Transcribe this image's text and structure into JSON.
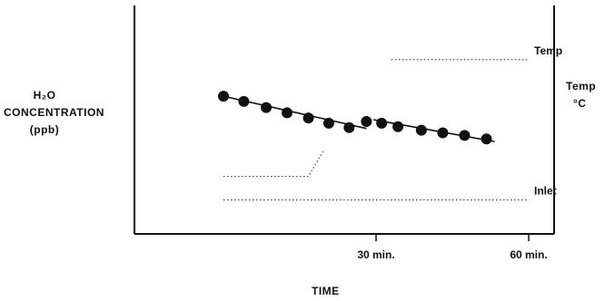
{
  "chart_data": {
    "type": "scatter",
    "title": "",
    "xlabel": "TIME",
    "ylabel_lines": [
      "H₂O",
      "CONCENTRATION",
      "(ppb)"
    ],
    "right_axis_label_lines": [
      "Temp",
      "°C"
    ],
    "x_unit": "min.",
    "xlim": [
      -17.5,
      65
    ],
    "x_ticks": [
      {
        "value": 30,
        "label": "30 min."
      },
      {
        "value": 60,
        "label": "60 min."
      }
    ],
    "grid": false,
    "y_axis_numeric_ticks": false,
    "series": [
      {
        "name": "",
        "kind": "points",
        "x": [
          0,
          4,
          8.4,
          12.5,
          16.7,
          20.7,
          24.7,
          28.1,
          31.1,
          34.3,
          38.9,
          43.1,
          47.4,
          51.7
        ],
        "y": [
          0.79,
          0.76,
          0.725,
          0.695,
          0.665,
          0.635,
          0.61,
          0.645,
          0.635,
          0.615,
          0.595,
          0.58,
          0.565,
          0.545
        ]
      },
      {
        "name": "",
        "kind": "fit-line",
        "segments": [
          {
            "x": [
              0,
              28.1
            ],
            "y": [
              0.79,
              0.605
            ]
          },
          {
            "x": [
              29.5,
              53.3
            ],
            "y": [
              0.655,
              0.53
            ]
          }
        ]
      },
      {
        "name": "Temp",
        "kind": "dotted-line",
        "x": [
          33,
          60
        ],
        "y": [
          1.0,
          1.0
        ]
      },
      {
        "name": "",
        "kind": "dotted-line",
        "x": [
          0,
          16.7,
          19.7
        ],
        "y": [
          0.33,
          0.33,
          0.48
        ]
      },
      {
        "name": "Inlet",
        "kind": "dotted-line",
        "x": [
          0,
          60
        ],
        "y": [
          0.195,
          0.195
        ]
      }
    ],
    "ylim": [
      0,
      1.29
    ]
  }
}
